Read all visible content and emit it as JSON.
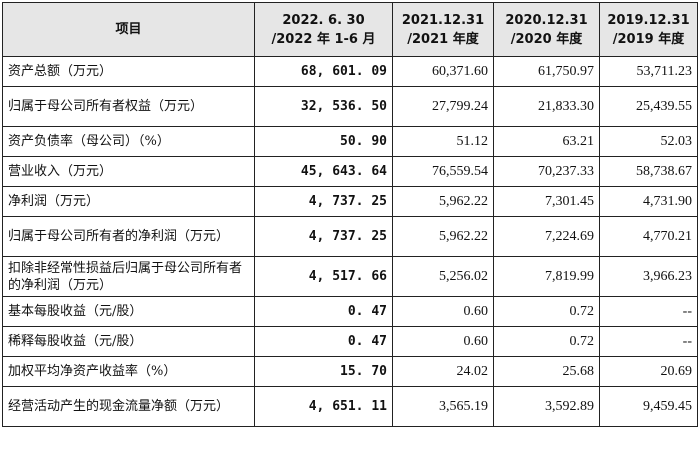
{
  "table": {
    "headers": {
      "item": "项目",
      "col1_line1": "2022. 6. 30",
      "col1_line2": "/2022 年 1-6 月",
      "col2_line1": "2021.12.31",
      "col2_line2": "/2021 年度",
      "col3_line1": "2020.12.31",
      "col3_line2": "/2020 年度",
      "col4_line1": "2019.12.31",
      "col4_line2": "/2019 年度"
    },
    "rows": [
      {
        "label": "资产总额（万元）",
        "v1": "68, 601. 09",
        "v2": "60,371.60",
        "v3": "61,750.97",
        "v4": "53,711.23"
      },
      {
        "label": "归属于母公司所有者权益（万元）",
        "v1": "32, 536. 50",
        "v2": "27,799.24",
        "v3": "21,833.30",
        "v4": "25,439.55"
      },
      {
        "label": "资产负债率（母公司）（%）",
        "v1": "50. 90",
        "v2": "51.12",
        "v3": "63.21",
        "v4": "52.03"
      },
      {
        "label": "营业收入（万元）",
        "v1": "45, 643. 64",
        "v2": "76,559.54",
        "v3": "70,237.33",
        "v4": "58,738.67"
      },
      {
        "label": "净利润（万元）",
        "v1": "4, 737. 25",
        "v2": "5,962.22",
        "v3": "7,301.45",
        "v4": "4,731.90"
      },
      {
        "label": "归属于母公司所有者的净利润（万元）",
        "v1": "4, 737. 25",
        "v2": "5,962.22",
        "v3": "7,224.69",
        "v4": "4,770.21"
      },
      {
        "label": "扣除非经常性损益后归属于母公司所有者的净利润（万元）",
        "v1": "4, 517. 66",
        "v2": "5,256.02",
        "v3": "7,819.99",
        "v4": "3,966.23"
      },
      {
        "label": "基本每股收益（元/股）",
        "v1": "0. 47",
        "v2": "0.60",
        "v3": "0.72",
        "v4": "--"
      },
      {
        "label": "稀释每股收益（元/股）",
        "v1": "0. 47",
        "v2": "0.60",
        "v3": "0.72",
        "v4": "--"
      },
      {
        "label": "加权平均净资产收益率（%）",
        "v1": "15. 70",
        "v2": "24.02",
        "v3": "25.68",
        "v4": "20.69"
      },
      {
        "label": "经营活动产生的现金流量净额（万元）",
        "v1": "4, 651. 11",
        "v2": "3,565.19",
        "v3": "3,592.89",
        "v4": "9,459.45"
      }
    ]
  }
}
